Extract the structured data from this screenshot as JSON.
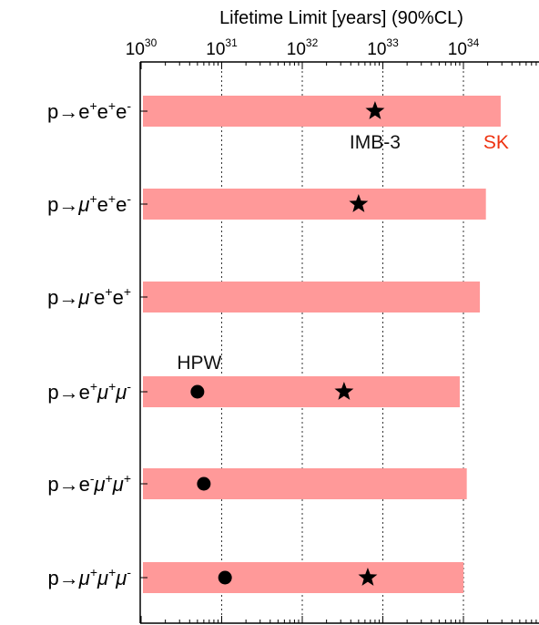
{
  "chart_data": {
    "type": "bar",
    "orientation": "horizontal",
    "title": "Lifetime Limit [years] (90%CL)",
    "xscale": "log",
    "xlim": [
      1e+30,
      3.5e+34
    ],
    "xticks": [
      {
        "base": "10",
        "exp": "30"
      },
      {
        "base": "10",
        "exp": "31"
      },
      {
        "base": "10",
        "exp": "32"
      },
      {
        "base": "10",
        "exp": "33"
      },
      {
        "base": "10",
        "exp": "34"
      }
    ],
    "grid": "vertical dotted",
    "bar_color": "#ff9999",
    "marker_color": "#000000",
    "sk_label_color": "#ee3311",
    "rows": [
      {
        "label_parts": [
          [
            "p",
            ""
          ],
          [
            "→",
            ""
          ],
          [
            "e",
            ""
          ],
          [
            "+",
            "sup"
          ],
          [
            "e",
            ""
          ],
          [
            "+",
            "sup"
          ],
          [
            "e",
            ""
          ],
          [
            "-",
            "sup"
          ]
        ],
        "sk": 2.9e+34,
        "imb3": 8e+32,
        "hpw": null
      },
      {
        "label_parts": [
          [
            "p",
            ""
          ],
          [
            "→",
            ""
          ],
          [
            "μ",
            ""
          ],
          [
            "+",
            "sup"
          ],
          [
            "e",
            ""
          ],
          [
            "+",
            "sup"
          ],
          [
            "e",
            ""
          ],
          [
            "-",
            "sup"
          ]
        ],
        "sk": 1.9e+34,
        "imb3": 5e+32,
        "hpw": null
      },
      {
        "label_parts": [
          [
            "p",
            ""
          ],
          [
            "→",
            ""
          ],
          [
            "μ",
            ""
          ],
          [
            "-",
            "sup"
          ],
          [
            "e",
            ""
          ],
          [
            "+",
            "sup"
          ],
          [
            "e",
            ""
          ],
          [
            "+",
            "sup"
          ]
        ],
        "sk": 1.6e+34,
        "imb3": null,
        "hpw": null
      },
      {
        "label_parts": [
          [
            "p",
            ""
          ],
          [
            "→",
            ""
          ],
          [
            "e",
            ""
          ],
          [
            "+",
            "sup"
          ],
          [
            "μ",
            ""
          ],
          [
            "+",
            "sup"
          ],
          [
            "μ",
            ""
          ],
          [
            "-",
            "sup"
          ]
        ],
        "sk": 9e+33,
        "imb3": 3.3e+32,
        "hpw": 5e+30
      },
      {
        "label_parts": [
          [
            "p",
            ""
          ],
          [
            "→",
            ""
          ],
          [
            "e",
            ""
          ],
          [
            "-",
            "sup"
          ],
          [
            "μ",
            ""
          ],
          [
            "+",
            "sup"
          ],
          [
            "μ",
            ""
          ],
          [
            "+",
            "sup"
          ]
        ],
        "sk": 1.1e+34,
        "imb3": null,
        "hpw": 6e+30
      },
      {
        "label_parts": [
          [
            "p",
            ""
          ],
          [
            "→",
            ""
          ],
          [
            "μ",
            ""
          ],
          [
            "+",
            "sup"
          ],
          [
            "μ",
            ""
          ],
          [
            "+",
            "sup"
          ],
          [
            "μ",
            ""
          ],
          [
            "-",
            "sup"
          ]
        ],
        "sk": 1e+34,
        "imb3": 6.5e+32,
        "hpw": 1.1e+31
      }
    ],
    "annotations": [
      {
        "text": "IMB-3",
        "row": 0,
        "anchor": "imb3"
      },
      {
        "text": "SK",
        "row": 0,
        "anchor": "sk"
      },
      {
        "text": "HPW",
        "row": 3,
        "anchor": "hpw"
      }
    ]
  }
}
